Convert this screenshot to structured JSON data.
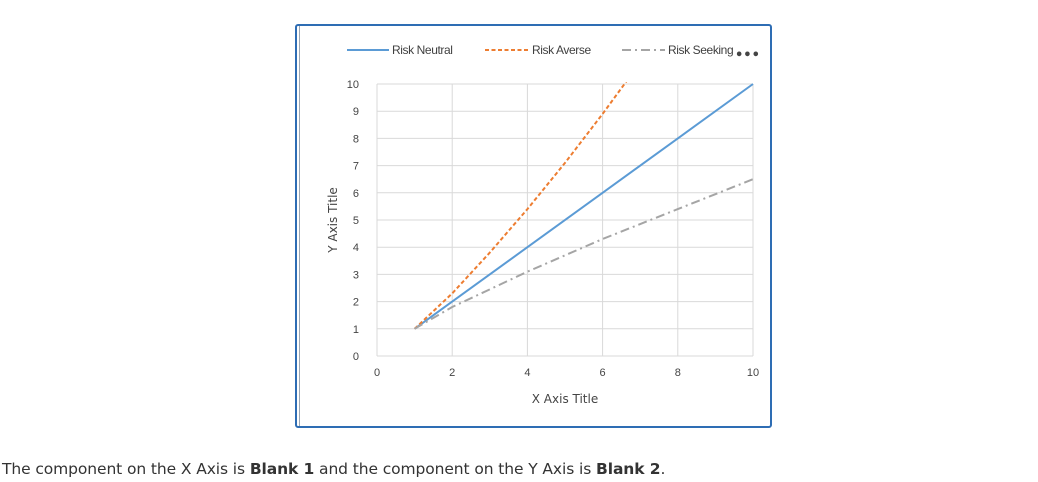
{
  "chart_data": {
    "type": "line",
    "xlabel": "X Axis Title",
    "ylabel": "Y Axis Title",
    "xlim": [
      0,
      10
    ],
    "ylim": [
      0,
      10
    ],
    "x_ticks": [
      0,
      2,
      4,
      6,
      8,
      10
    ],
    "y_ticks": [
      0,
      1,
      2,
      3,
      4,
      5,
      6,
      7,
      8,
      9,
      10
    ],
    "grid": true,
    "legend_position": "top",
    "series": [
      {
        "name": "Risk Neutral",
        "style": "solid",
        "color": "#5b9bd5",
        "points": [
          [
            1,
            1
          ],
          [
            2,
            2
          ],
          [
            4,
            4
          ],
          [
            6,
            6
          ],
          [
            8,
            8
          ],
          [
            10,
            10
          ]
        ]
      },
      {
        "name": "Risk Averse",
        "style": "dashed",
        "color": "#ed7d31",
        "points": [
          [
            1,
            1
          ],
          [
            2,
            2.3
          ],
          [
            3,
            3.8
          ],
          [
            4,
            5.4
          ],
          [
            5,
            7.1
          ],
          [
            6,
            8.9
          ],
          [
            6.9,
            10.6
          ]
        ]
      },
      {
        "name": "Risk Seeking",
        "style": "dashdot",
        "color": "#a5a5a5",
        "points": [
          [
            1,
            1
          ],
          [
            2,
            1.8
          ],
          [
            4,
            3.1
          ],
          [
            6,
            4.3
          ],
          [
            8,
            5.4
          ],
          [
            10,
            6.5
          ]
        ]
      }
    ]
  },
  "question": {
    "prefix": "The component on the X Axis is ",
    "blank1": "Blank 1",
    "middle": " and the component on the Y Axis is ",
    "blank2": "Blank 2",
    "suffix": "."
  }
}
